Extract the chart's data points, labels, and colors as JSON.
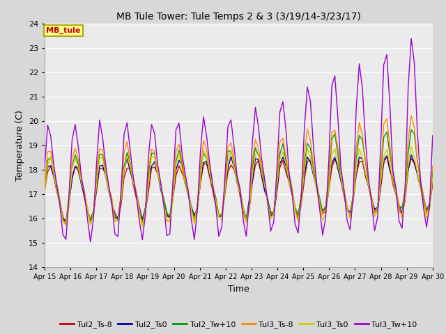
{
  "title": "MB Tule Tower: Tule Temps 2 & 3 (3/19/14-3/23/17)",
  "xlabel": "Time",
  "ylabel": "Temperature (C)",
  "ylim": [
    14.0,
    24.0
  ],
  "yticks": [
    14.0,
    15.0,
    16.0,
    17.0,
    18.0,
    19.0,
    20.0,
    21.0,
    22.0,
    23.0,
    24.0
  ],
  "legend_label": "MB_tule",
  "series_colors": {
    "Tul2_Ts-8": "#cc0000",
    "Tul2_Ts0": "#000099",
    "Tul2_Tw+10": "#009900",
    "Tul3_Ts-8": "#ff8800",
    "Tul3_Ts0": "#cccc00",
    "Tul3_Tw+10": "#9900cc"
  },
  "bg_color": "#d8d8d8",
  "plot_bg": "#ebebeb",
  "x_tick_labels": [
    "Apr 15",
    "Apr 16",
    "Apr 17",
    "Apr 18",
    "Apr 19",
    "Apr 20",
    "Apr 21",
    "Apr 22",
    "Apr 23",
    "Apr 24",
    "Apr 25",
    "Apr 26",
    "Apr 27",
    "Apr 28",
    "Apr 29",
    "Apr 30"
  ]
}
